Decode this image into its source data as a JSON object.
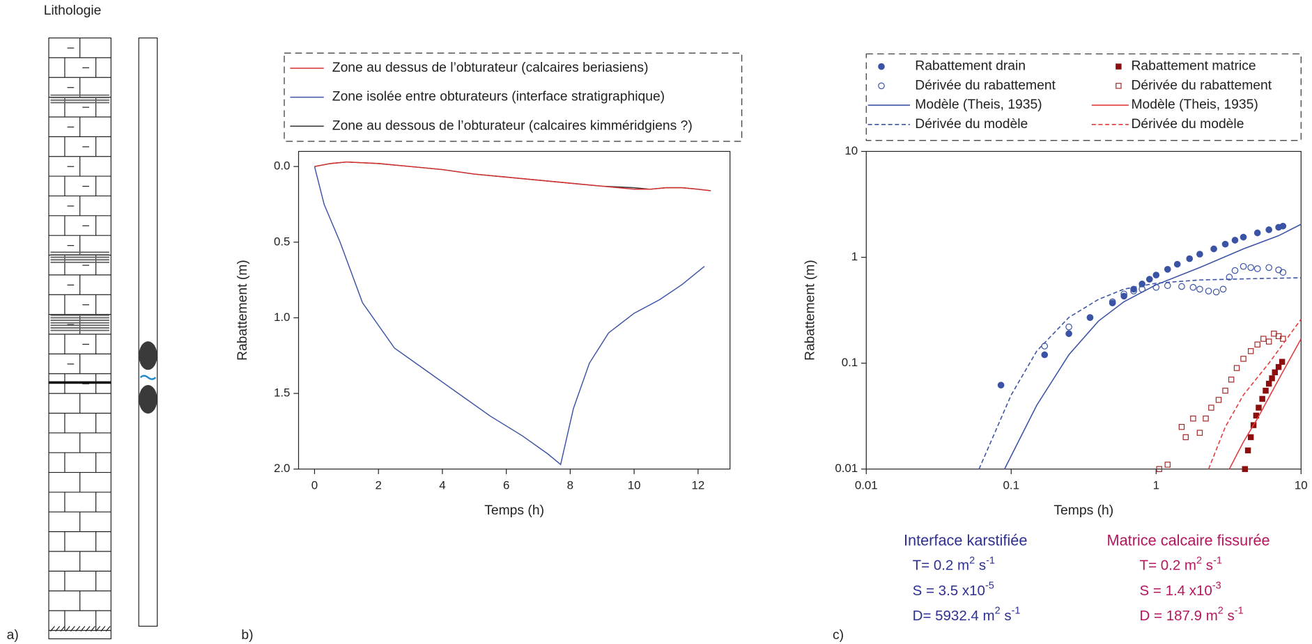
{
  "lithology": {
    "title": "Lithologie",
    "panel_label": "a)"
  },
  "chart_data": [
    {
      "type": "line",
      "panel_label": "b)",
      "xlabel": "Temps (h)",
      "ylabel": "Rabattement (m)",
      "xlim": [
        -0.5,
        13
      ],
      "ylim": [
        -0.1,
        2.0
      ],
      "y_inverted": true,
      "xticks": [
        0,
        2,
        4,
        6,
        8,
        10,
        12
      ],
      "yticks": [
        {
          "value": 0,
          "label": "0.0"
        },
        0.5,
        {
          "value": 1,
          "label": "1.0"
        },
        1.5,
        {
          "value": 2,
          "label": "2.0"
        }
      ],
      "series": [
        {
          "name": "Zone au dessus de l’obturateur (calcaires beriasiens)",
          "color": "#d62e2e",
          "x": [
            0,
            0.5,
            1,
            2,
            3,
            4,
            5,
            6,
            7,
            8,
            9,
            10,
            10.5,
            11,
            11.5,
            12,
            12.4
          ],
          "values": [
            0,
            -0.02,
            -0.03,
            -0.02,
            0,
            0.02,
            0.05,
            0.07,
            0.09,
            0.11,
            0.13,
            0.15,
            0.15,
            0.14,
            0.14,
            0.15,
            0.16
          ]
        },
        {
          "name": "Zone isolée entre obturateurs (interface stratigraphique)",
          "color": "#3b53a4",
          "x": [
            0,
            0.3,
            0.8,
            1.5,
            2.5,
            3.5,
            4.5,
            5.5,
            6.5,
            7.3,
            7.7,
            8.1,
            8.6,
            9.2,
            10,
            10.8,
            11.5,
            12.2
          ],
          "values": [
            0,
            0.25,
            0.5,
            0.9,
            1.2,
            1.35,
            1.5,
            1.65,
            1.78,
            1.9,
            1.97,
            1.6,
            1.3,
            1.1,
            0.97,
            0.88,
            0.78,
            0.66
          ]
        },
        {
          "name": "Zone au dessous de l’obturateur (calcaires kimméridgiens ?)",
          "color": "#333333",
          "x": [
            0,
            0.5,
            1,
            2,
            3,
            4,
            5,
            6,
            7,
            8,
            9,
            10,
            10.5,
            11,
            11.5,
            12,
            12.4
          ],
          "values": [
            0,
            -0.02,
            -0.03,
            -0.02,
            0,
            0.02,
            0.05,
            0.07,
            0.09,
            0.11,
            0.13,
            0.14,
            0.15,
            0.14,
            0.14,
            0.15,
            0.16
          ]
        }
      ]
    },
    {
      "type": "scatter",
      "panel_label": "c)",
      "xlabel": "Temps (h)",
      "ylabel": "Rabattement (m)",
      "log_x": true,
      "log_y": true,
      "xlim": [
        0.01,
        10
      ],
      "ylim": [
        0.01,
        10
      ],
      "xticks": [
        0.01,
        0.1,
        1,
        10
      ],
      "yticks": [
        0.01,
        0.1,
        1,
        10
      ],
      "series": [
        {
          "name": "Rabattement drain",
          "style": "filled-circle",
          "color": "#3b53a4",
          "x": [
            0.085,
            0.17,
            0.25,
            0.35,
            0.5,
            0.6,
            0.7,
            0.8,
            0.9,
            1.0,
            1.2,
            1.4,
            1.7,
            2,
            2.5,
            3,
            3.5,
            4,
            5,
            6,
            7,
            7.5
          ],
          "values": [
            0.062,
            0.12,
            0.19,
            0.27,
            0.37,
            0.43,
            0.5,
            0.56,
            0.62,
            0.68,
            0.77,
            0.86,
            0.97,
            1.07,
            1.2,
            1.33,
            1.45,
            1.55,
            1.7,
            1.82,
            1.92,
            1.97
          ]
        },
        {
          "name": "Dérivée du rabattement",
          "style": "open-circle",
          "color": "#3b53a4",
          "x": [
            0.17,
            0.25,
            0.35,
            0.5,
            0.6,
            0.7,
            0.8,
            1,
            1.2,
            1.5,
            1.8,
            2,
            2.3,
            2.6,
            2.9,
            3.2,
            3.5,
            4,
            4.5,
            5,
            6,
            7,
            7.5
          ],
          "values": [
            0.145,
            0.22,
            0.27,
            0.38,
            0.45,
            0.48,
            0.5,
            0.52,
            0.54,
            0.53,
            0.52,
            0.5,
            0.48,
            0.47,
            0.5,
            0.65,
            0.75,
            0.82,
            0.8,
            0.78,
            0.8,
            0.76,
            0.72
          ]
        },
        {
          "name": "Modèle (Theis, 1935)",
          "style": "line",
          "color": "#3b53a4",
          "x": [
            0.09,
            0.15,
            0.25,
            0.4,
            0.6,
            1,
            2,
            4,
            7,
            10
          ],
          "values": [
            0.01,
            0.04,
            0.12,
            0.25,
            0.38,
            0.55,
            0.8,
            1.2,
            1.6,
            2.05
          ]
        },
        {
          "name": "Dérivée du modèle",
          "style": "dashed",
          "color": "#3b53a4",
          "x": [
            0.06,
            0.1,
            0.15,
            0.25,
            0.4,
            0.6,
            1,
            2,
            5,
            10
          ],
          "values": [
            0.01,
            0.05,
            0.13,
            0.27,
            0.4,
            0.5,
            0.57,
            0.61,
            0.63,
            0.64
          ]
        },
        {
          "name": "Rabattement matrice",
          "style": "filled-square",
          "color": "#8b0f0f",
          "x": [
            4.1,
            4.3,
            4.5,
            4.7,
            4.9,
            5.1,
            5.4,
            5.7,
            6,
            6.3,
            6.6,
            7,
            7.4
          ],
          "values": [
            0.01,
            0.015,
            0.02,
            0.026,
            0.032,
            0.038,
            0.046,
            0.055,
            0.064,
            0.072,
            0.082,
            0.092,
            0.103
          ]
        },
        {
          "name": "Dérivée du rabattement",
          "style": "open-square",
          "color": "#a52a2a",
          "x": [
            1.05,
            1.2,
            1.5,
            1.6,
            1.8,
            2,
            2.2,
            2.4,
            2.7,
            3,
            3.3,
            3.6,
            4,
            4.5,
            5,
            5.5,
            6,
            6.5,
            7,
            7.5
          ],
          "values": [
            0.01,
            0.011,
            0.025,
            0.02,
            0.03,
            0.022,
            0.03,
            0.038,
            0.045,
            0.055,
            0.07,
            0.09,
            0.11,
            0.13,
            0.15,
            0.17,
            0.16,
            0.19,
            0.18,
            0.17
          ]
        },
        {
          "name": "Modèle (Theis, 1935)",
          "style": "line",
          "color": "#e23a3a",
          "x": [
            3.2,
            4,
            5,
            7,
            10
          ],
          "values": [
            0.01,
            0.018,
            0.03,
            0.07,
            0.17
          ]
        },
        {
          "name": "Dérivée du modèle",
          "style": "dashed",
          "color": "#e23a3a",
          "x": [
            2.3,
            3,
            4,
            6,
            10
          ],
          "values": [
            0.01,
            0.025,
            0.05,
            0.1,
            0.26
          ]
        }
      ],
      "annotations": [
        {
          "title": "Interface karstifiée",
          "color": "#2e3192",
          "lines": [
            [
              "T= 0.2 m",
              "2",
              " s",
              "-1"
            ],
            [
              "S = 3.5 x10",
              "-5"
            ],
            [
              "D= 5932.4 m",
              "2",
              " s",
              "-1"
            ]
          ]
        },
        {
          "title": "Matrice calcaire fissurée",
          "color": "#b5175f",
          "lines": [
            [
              "T= 0.2 m",
              "2",
              " s",
              "-1"
            ],
            [
              "S = 1.4 x10",
              "-3"
            ],
            [
              "D = 187.9 m",
              "2",
              " s",
              "-1"
            ]
          ]
        }
      ]
    }
  ]
}
